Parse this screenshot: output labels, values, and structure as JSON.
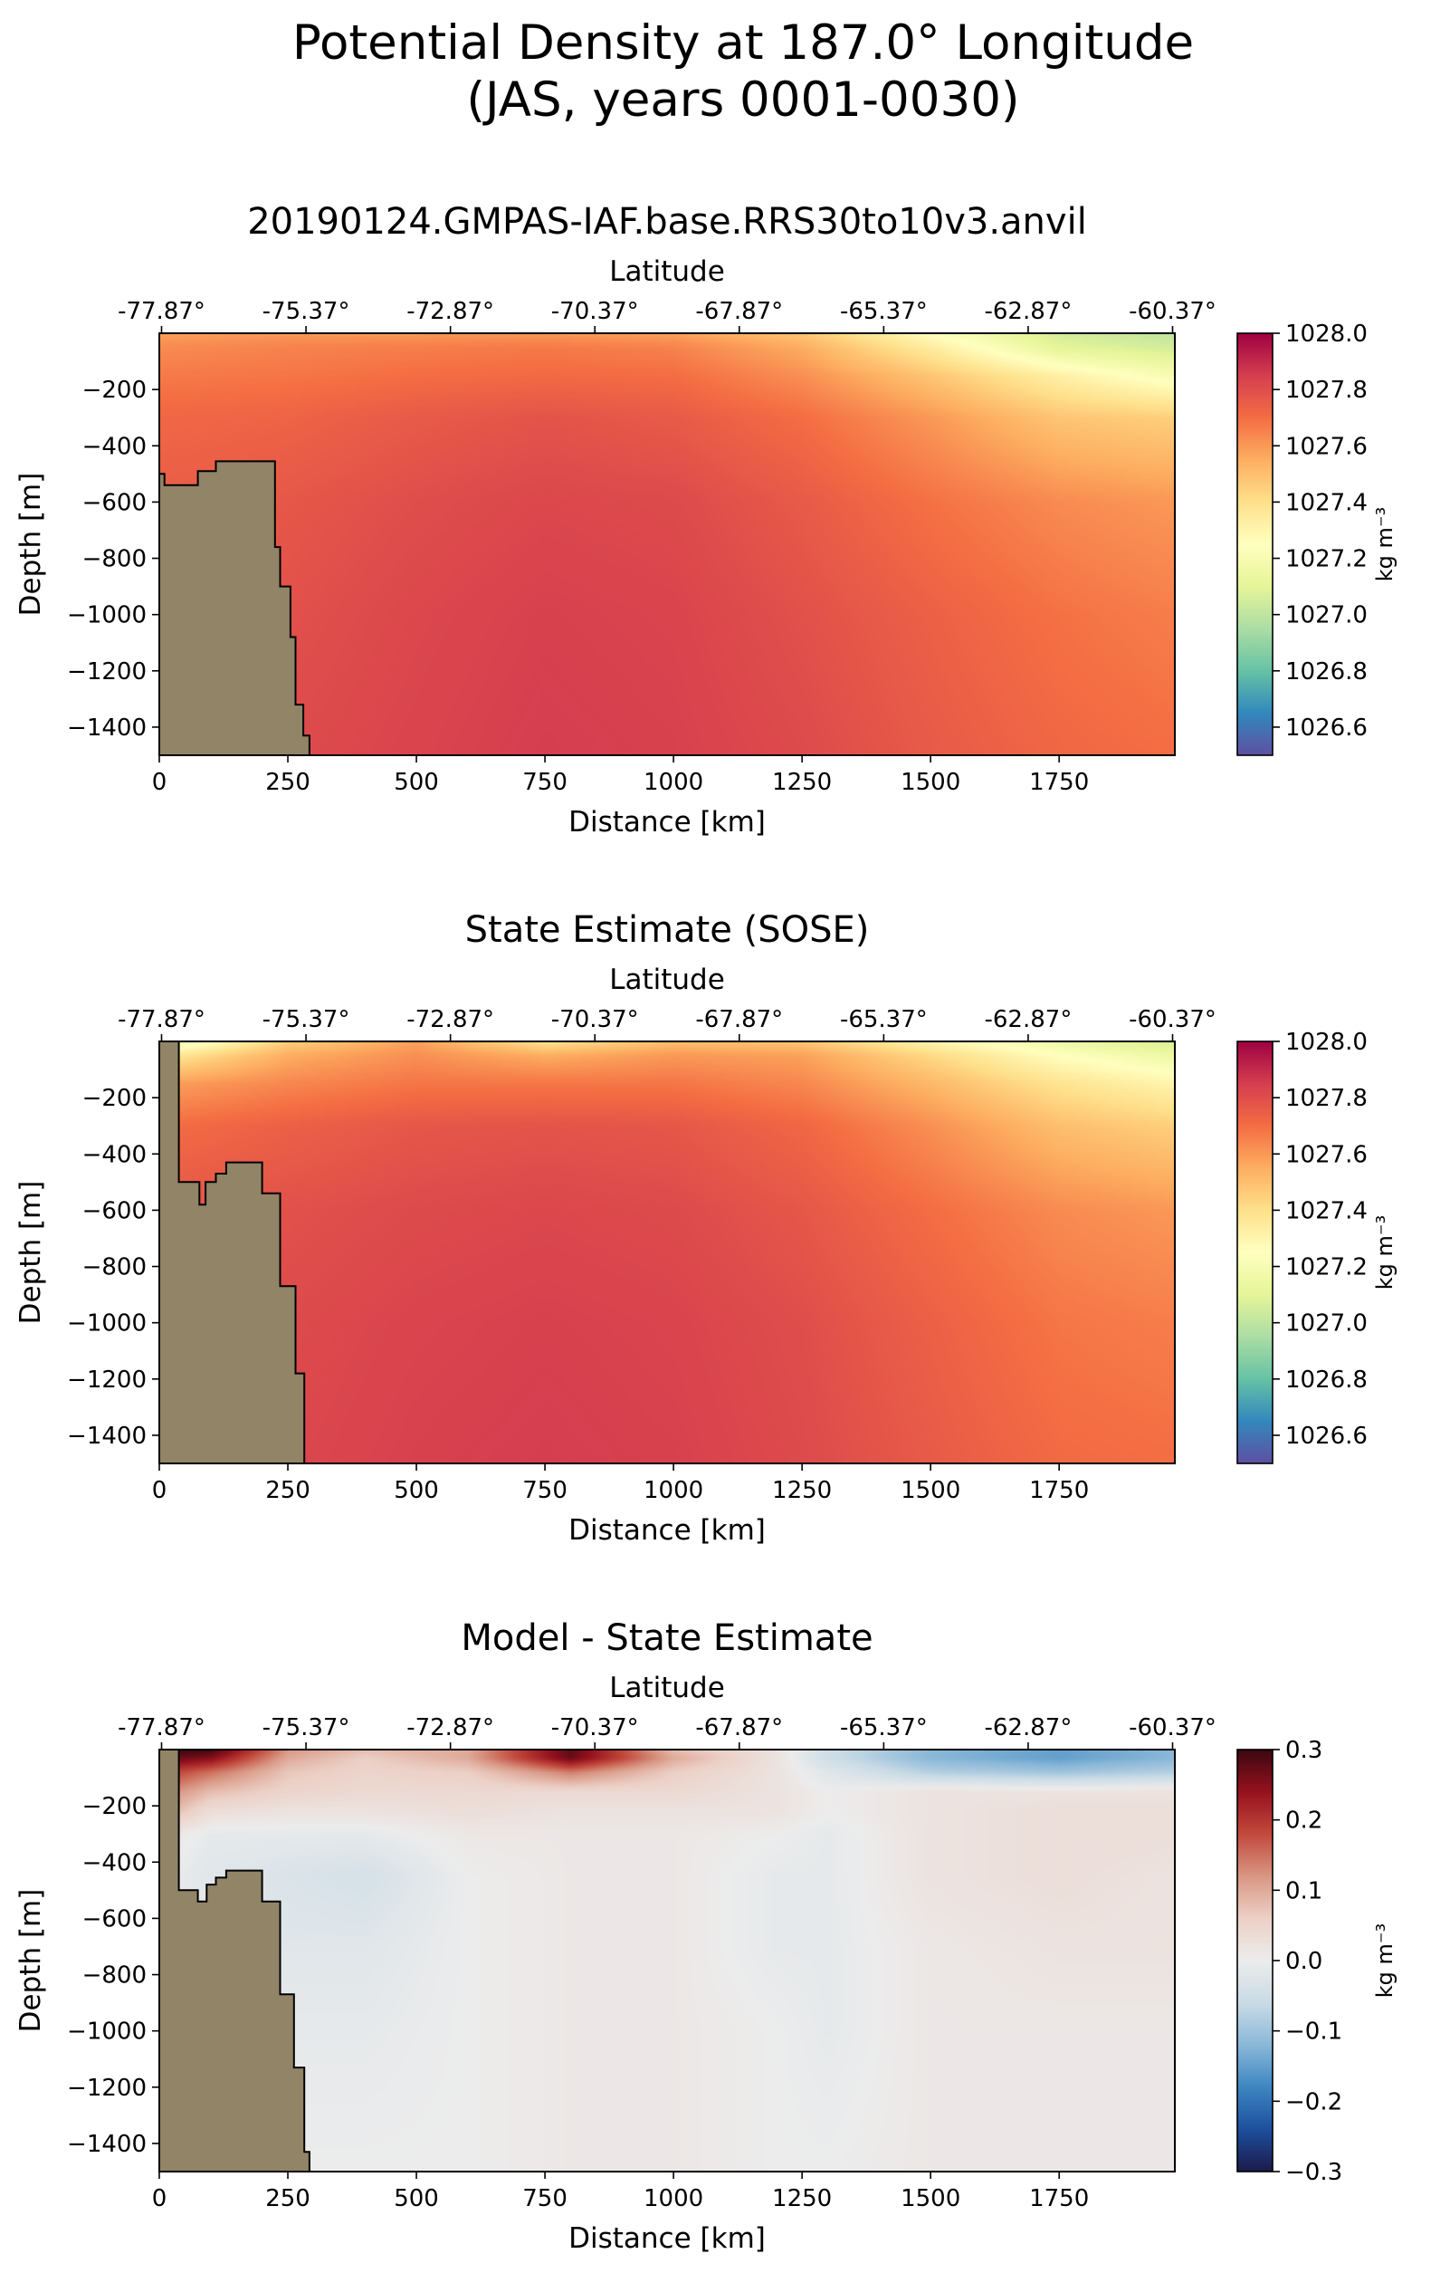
{
  "figure": {
    "title_line1": "Potential Density at 187.0° Longitude",
    "title_line2": "(JAS, years 0001-0030)"
  },
  "colors": {
    "land": "#918467",
    "density_cmap": [
      "#5e4fa2",
      "#3288bd",
      "#66c2a5",
      "#abdda4",
      "#e6f598",
      "#ffffbf",
      "#fee08b",
      "#fdae61",
      "#f46d43",
      "#d53e4f",
      "#9e0142"
    ],
    "diff_cmap": [
      "#1b1a4a",
      "#1d4f9e",
      "#3d86c1",
      "#8ab8d8",
      "#c9dbe6",
      "#ececec",
      "#ecd0c6",
      "#d99683",
      "#c2493c",
      "#95111e",
      "#3b0810"
    ]
  },
  "panels": [
    {
      "id": "model",
      "title": "20190124.GMPAS-IAF.base.RRS30to10v3.anvil",
      "colorbar": {
        "cmap": "density",
        "min": 1026.5,
        "max": 1028.0,
        "ticks": [
          "1026.6",
          "1026.8",
          "1027.0",
          "1027.2",
          "1027.4",
          "1027.6",
          "1027.8",
          "1028.0"
        ],
        "label": "kg m⁻³"
      },
      "land": [
        [
          0,
          -500
        ],
        [
          10,
          -500
        ],
        [
          10,
          -540
        ],
        [
          50,
          -540
        ],
        [
          50,
          -540
        ],
        [
          75,
          -540
        ],
        [
          75,
          -490
        ],
        [
          110,
          -490
        ],
        [
          110,
          -455
        ],
        [
          225,
          -455
        ],
        [
          225,
          -760
        ],
        [
          235,
          -760
        ],
        [
          235,
          -900
        ],
        [
          255,
          -900
        ],
        [
          255,
          -1080
        ],
        [
          265,
          -1080
        ],
        [
          265,
          -1320
        ],
        [
          280,
          -1320
        ],
        [
          280,
          -1430
        ],
        [
          292,
          -1430
        ],
        [
          292,
          -1500
        ],
        [
          0,
          -1500
        ]
      ],
      "field": "model"
    },
    {
      "id": "sose",
      "title": "State Estimate (SOSE)",
      "colorbar": {
        "cmap": "density",
        "min": 1026.5,
        "max": 1028.0,
        "ticks": [
          "1026.6",
          "1026.8",
          "1027.0",
          "1027.2",
          "1027.4",
          "1027.6",
          "1027.8",
          "1028.0"
        ],
        "label": "kg m⁻³"
      },
      "land": [
        [
          0,
          0
        ],
        [
          38,
          0
        ],
        [
          38,
          -500
        ],
        [
          78,
          -500
        ],
        [
          78,
          -580
        ],
        [
          90,
          -580
        ],
        [
          90,
          -500
        ],
        [
          110,
          -500
        ],
        [
          110,
          -470
        ],
        [
          130,
          -470
        ],
        [
          130,
          -430
        ],
        [
          200,
          -430
        ],
        [
          200,
          -540
        ],
        [
          235,
          -540
        ],
        [
          235,
          -870
        ],
        [
          265,
          -870
        ],
        [
          265,
          -1180
        ],
        [
          282,
          -1180
        ],
        [
          282,
          -1500
        ],
        [
          0,
          -1500
        ]
      ],
      "field": "sose"
    },
    {
      "id": "diff",
      "title": "Model - State Estimate",
      "colorbar": {
        "cmap": "diff",
        "min": -0.3,
        "max": 0.3,
        "ticks": [
          "−0.3",
          "−0.2",
          "−0.1",
          "0.0",
          "0.1",
          "0.2",
          "0.3"
        ],
        "label": "kg m⁻³"
      },
      "land": [
        [
          0,
          0
        ],
        [
          38,
          0
        ],
        [
          38,
          -500
        ],
        [
          75,
          -500
        ],
        [
          75,
          -540
        ],
        [
          92,
          -540
        ],
        [
          92,
          -480
        ],
        [
          110,
          -480
        ],
        [
          110,
          -455
        ],
        [
          130,
          -455
        ],
        [
          130,
          -430
        ],
        [
          200,
          -430
        ],
        [
          200,
          -540
        ],
        [
          235,
          -540
        ],
        [
          235,
          -870
        ],
        [
          262,
          -870
        ],
        [
          262,
          -1130
        ],
        [
          282,
          -1130
        ],
        [
          282,
          -1430
        ],
        [
          292,
          -1430
        ],
        [
          292,
          -1500
        ],
        [
          0,
          -1500
        ]
      ],
      "field": "diff"
    }
  ],
  "axes": {
    "xlabel": "Distance [km]",
    "ylabel": "Depth [m]",
    "top_label": "Latitude",
    "xlim": [
      0,
      1975
    ],
    "ylim": [
      -1500,
      0
    ],
    "xticks": [
      "0",
      "250",
      "500",
      "750",
      "1000",
      "1250",
      "1500",
      "1750"
    ],
    "yticks": [
      "−200",
      "−400",
      "−600",
      "−800",
      "−1000",
      "−1200",
      "−1400"
    ],
    "lat_ticks": [
      "-77.87°",
      "-75.37°",
      "-72.87°",
      "-70.37°",
      "-67.87°",
      "-65.37°",
      "-62.87°",
      "-60.37°"
    ]
  },
  "chart_data": [
    {
      "type": "heatmap",
      "title": "20190124.GMPAS-IAF.base.RRS30to10v3.anvil",
      "xlabel": "Distance [km]",
      "ylabel": "Depth [m]",
      "xlim": [
        0,
        1975
      ],
      "ylim": [
        -1500,
        0
      ],
      "color_range": [
        1026.5,
        1028.0
      ],
      "colorbar_label": "kg m⁻³",
      "x": [
        0,
        250,
        500,
        750,
        1000,
        1250,
        1500,
        1750,
        1975
      ],
      "depth": [
        0,
        -50,
        -150,
        -300,
        -600,
        -1000,
        -1500
      ],
      "values": [
        [
          1027.58,
          1027.6,
          1027.6,
          1027.6,
          1027.58,
          1027.48,
          1027.25,
          1027.05,
          1027.0
        ],
        [
          1027.63,
          1027.65,
          1027.66,
          1027.67,
          1027.65,
          1027.55,
          1027.34,
          1027.1,
          1027.05
        ],
        [
          1027.67,
          1027.68,
          1027.7,
          1027.71,
          1027.7,
          1027.62,
          1027.48,
          1027.32,
          1027.2
        ],
        [
          1027.72,
          1027.73,
          1027.76,
          1027.78,
          1027.76,
          1027.7,
          1027.6,
          1027.48,
          1027.45
        ],
        [
          1027.75,
          1027.77,
          1027.8,
          1027.82,
          1027.81,
          1027.76,
          1027.69,
          1027.63,
          1027.6
        ],
        [
          1027.77,
          1027.79,
          1027.82,
          1027.84,
          1027.83,
          1027.79,
          1027.74,
          1027.69,
          1027.66
        ],
        [
          1027.79,
          1027.81,
          1027.83,
          1027.85,
          1027.84,
          1027.81,
          1027.76,
          1027.72,
          1027.7
        ]
      ]
    },
    {
      "type": "heatmap",
      "title": "State Estimate (SOSE)",
      "xlabel": "Distance [km]",
      "ylabel": "Depth [m]",
      "xlim": [
        0,
        1975
      ],
      "ylim": [
        -1500,
        0
      ],
      "color_range": [
        1026.5,
        1028.0
      ],
      "colorbar_label": "kg m⁻³",
      "x": [
        0,
        250,
        500,
        750,
        1000,
        1250,
        1500,
        1750,
        1975
      ],
      "depth": [
        0,
        -50,
        -150,
        -300,
        -600,
        -1000,
        -1500
      ],
      "values": [
        [
          1027.1,
          1027.45,
          1027.58,
          1027.38,
          1027.5,
          1027.48,
          1027.3,
          1027.15,
          1027.05
        ],
        [
          1027.35,
          1027.55,
          1027.62,
          1027.55,
          1027.6,
          1027.58,
          1027.42,
          1027.25,
          1027.15
        ],
        [
          1027.58,
          1027.64,
          1027.68,
          1027.68,
          1027.68,
          1027.64,
          1027.52,
          1027.38,
          1027.3
        ],
        [
          1027.7,
          1027.74,
          1027.77,
          1027.78,
          1027.77,
          1027.72,
          1027.62,
          1027.5,
          1027.45
        ],
        [
          1027.77,
          1027.79,
          1027.81,
          1027.82,
          1027.81,
          1027.77,
          1027.7,
          1027.63,
          1027.6
        ],
        [
          1027.8,
          1027.81,
          1027.83,
          1027.84,
          1027.83,
          1027.8,
          1027.74,
          1027.68,
          1027.66
        ],
        [
          1027.81,
          1027.82,
          1027.84,
          1027.85,
          1027.84,
          1027.81,
          1027.76,
          1027.71,
          1027.7
        ]
      ]
    },
    {
      "type": "heatmap",
      "title": "Model - State Estimate",
      "xlabel": "Distance [km]",
      "ylabel": "Depth [m]",
      "xlim": [
        0,
        1975
      ],
      "ylim": [
        -1500,
        0
      ],
      "color_range": [
        -0.3,
        0.3
      ],
      "colorbar_label": "kg m⁻³",
      "x": [
        0,
        100,
        250,
        400,
        600,
        800,
        1000,
        1200,
        1300,
        1500,
        1750,
        1975
      ],
      "depth": [
        0,
        -30,
        -80,
        -150,
        -220,
        -300,
        -450,
        -700,
        -1000,
        -1500
      ],
      "values": [
        [
          0.3,
          0.3,
          0.12,
          0.08,
          0.1,
          0.28,
          0.08,
          0.02,
          -0.05,
          -0.12,
          -0.15,
          -0.12
        ],
        [
          0.28,
          0.25,
          0.1,
          0.06,
          0.1,
          0.27,
          0.1,
          0.02,
          -0.05,
          -0.12,
          -0.15,
          -0.12
        ],
        [
          0.2,
          0.15,
          0.07,
          0.05,
          0.06,
          0.14,
          0.06,
          0.02,
          -0.02,
          -0.08,
          -0.1,
          -0.08
        ],
        [
          0.14,
          0.08,
          0.05,
          0.04,
          0.04,
          0.04,
          0.04,
          0.02,
          0.0,
          0.02,
          0.02,
          0.02
        ],
        [
          0.1,
          0.03,
          0.02,
          0.02,
          0.03,
          0.02,
          0.02,
          0.02,
          0.0,
          0.02,
          0.03,
          0.03
        ],
        [
          0.02,
          -0.01,
          -0.01,
          -0.01,
          0.01,
          0.01,
          0.01,
          0.0,
          -0.01,
          0.02,
          0.03,
          0.03
        ],
        [
          0.0,
          -0.02,
          -0.03,
          -0.04,
          0.0,
          0.01,
          0.01,
          -0.01,
          -0.01,
          0.02,
          0.03,
          0.02
        ],
        [
          0.0,
          -0.01,
          -0.02,
          -0.02,
          0.0,
          0.01,
          0.01,
          -0.01,
          -0.01,
          0.01,
          0.02,
          0.02
        ],
        [
          0.0,
          0.0,
          -0.01,
          -0.01,
          0.0,
          0.01,
          0.01,
          0.0,
          -0.01,
          0.01,
          0.01,
          0.01
        ],
        [
          0.0,
          0.0,
          0.0,
          0.0,
          0.0,
          0.01,
          0.01,
          0.0,
          0.0,
          0.01,
          0.01,
          0.01
        ]
      ]
    }
  ]
}
